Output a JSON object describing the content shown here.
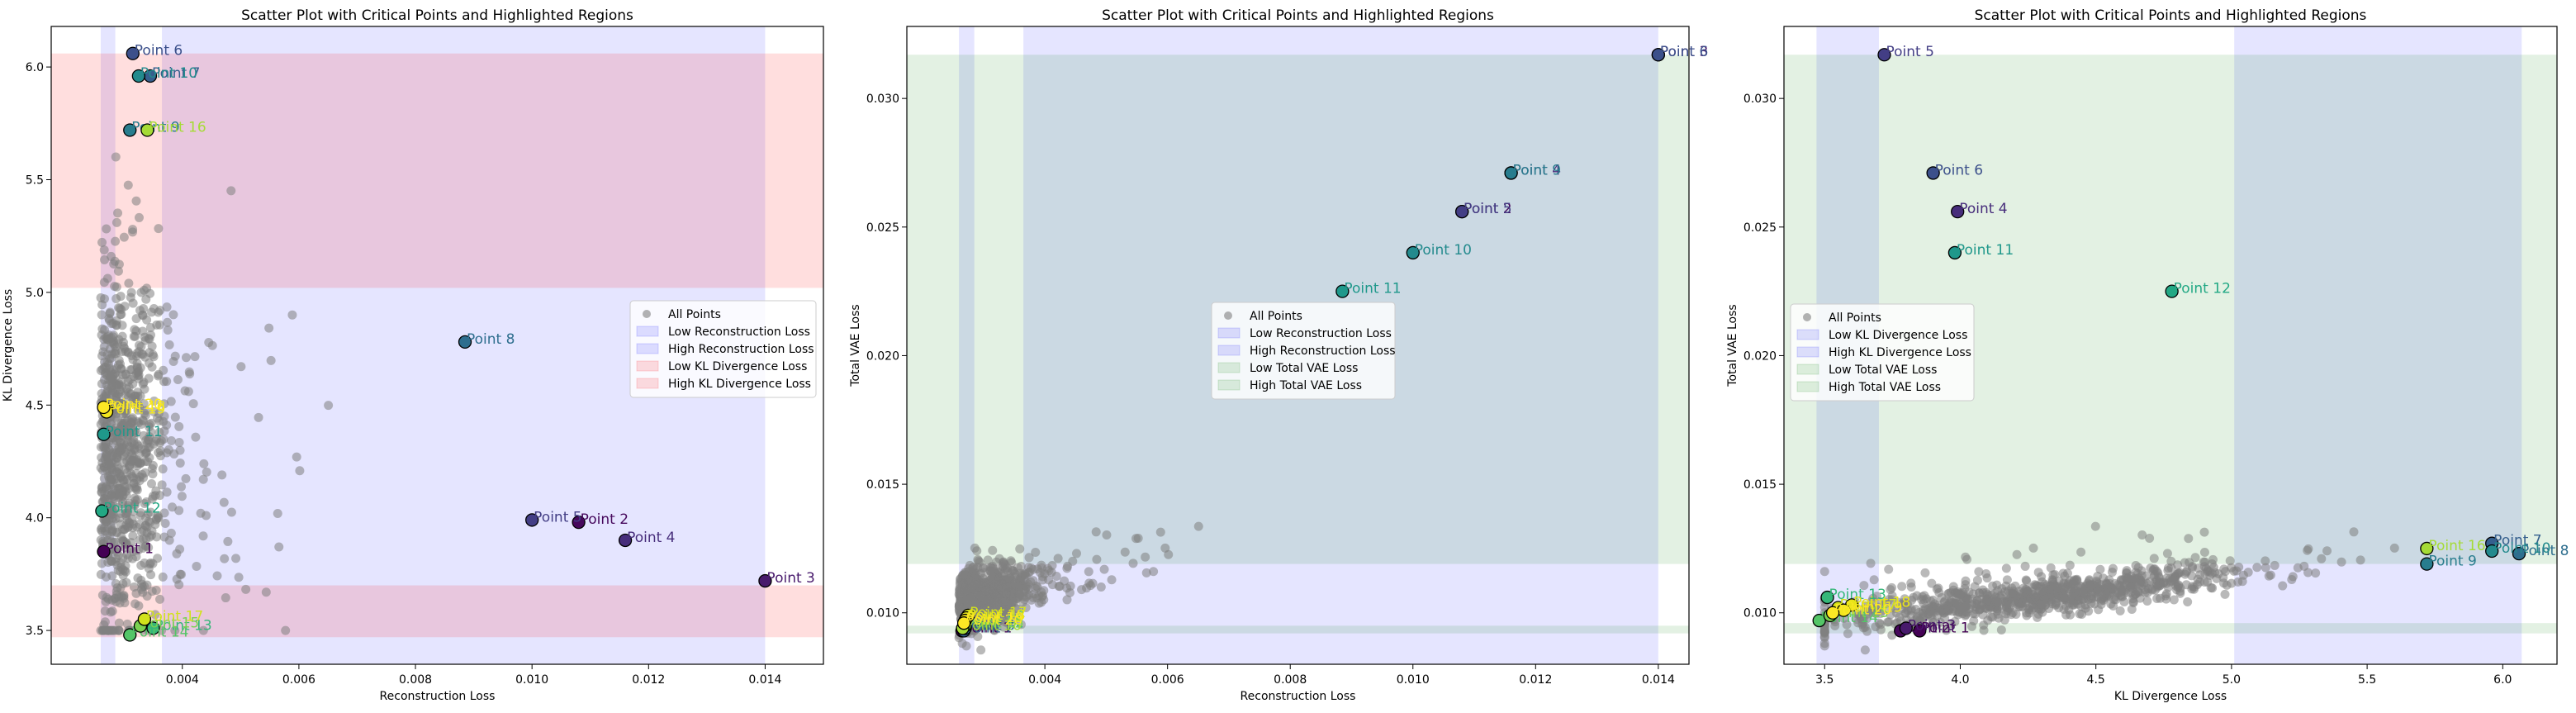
{
  "chart_data": [
    {
      "type": "scatter",
      "title": "Scatter Plot with Critical Points and Highlighted Regions",
      "xlabel": "Reconstruction Loss",
      "ylabel": "KL Divergence Loss",
      "xlim": [
        0.00175,
        0.015
      ],
      "ylim": [
        3.35,
        6.18
      ],
      "xticks": [
        0.004,
        0.006,
        0.008,
        0.01,
        0.012,
        0.014
      ],
      "xtick_labels": [
        "0.004",
        "0.006",
        "0.008",
        "0.010",
        "0.012",
        "0.014"
      ],
      "yticks": [
        3.5,
        4.0,
        4.5,
        5.0,
        5.5,
        6.0
      ],
      "ytick_labels": [
        "3.5",
        "4.0",
        "4.5",
        "5.0",
        "5.5",
        "6.0"
      ],
      "regions": [
        {
          "axis": "x",
          "range": [
            0.0026,
            0.00285
          ],
          "color": "#0000ff",
          "name": "Low Reconstruction Loss"
        },
        {
          "axis": "x",
          "range": [
            0.00365,
            0.014
          ],
          "color": "#0000ff",
          "name": "High Reconstruction Loss"
        },
        {
          "axis": "y",
          "range": [
            3.47,
            3.7
          ],
          "color": "#ff0000",
          "name": "Low KL Divergence Loss"
        },
        {
          "axis": "y",
          "range": [
            5.02,
            6.06
          ],
          "color": "#ff0000",
          "name": "High KL Divergence Loss"
        }
      ],
      "critical_points": [
        {
          "label": "Point 1",
          "x": 0.00265,
          "y": 3.85,
          "color": "#440154"
        },
        {
          "label": "Point 2",
          "x": 0.0108,
          "y": 3.98,
          "color": "#46085c"
        },
        {
          "label": "Point 3",
          "x": 0.014,
          "y": 3.72,
          "color": "#481a6c"
        },
        {
          "label": "Point 4",
          "x": 0.0116,
          "y": 3.9,
          "color": "#472d7b"
        },
        {
          "label": "Point 5",
          "x": 0.01,
          "y": 3.99,
          "color": "#433e85"
        },
        {
          "label": "Point 6",
          "x": 0.00315,
          "y": 6.06,
          "color": "#3c508b"
        },
        {
          "label": "Point 7",
          "x": 0.00345,
          "y": 5.96,
          "color": "#355f8d"
        },
        {
          "label": "Point 8",
          "x": 0.00885,
          "y": 4.78,
          "color": "#2e6e8e"
        },
        {
          "label": "Point 9",
          "x": 0.0031,
          "y": 5.72,
          "color": "#287d8e"
        },
        {
          "label": "Point 10",
          "x": 0.00325,
          "y": 5.96,
          "color": "#238a8d"
        },
        {
          "label": "Point 11",
          "x": 0.00265,
          "y": 4.37,
          "color": "#1f988b"
        },
        {
          "label": "Point 12",
          "x": 0.00262,
          "y": 4.03,
          "color": "#22a884"
        },
        {
          "label": "Point 13",
          "x": 0.0035,
          "y": 3.51,
          "color": "#35b779"
        },
        {
          "label": "Point 14",
          "x": 0.0031,
          "y": 3.48,
          "color": "#54c568"
        },
        {
          "label": "Point 15",
          "x": 0.00328,
          "y": 3.52,
          "color": "#7ad151"
        },
        {
          "label": "Point 16",
          "x": 0.0034,
          "y": 5.72,
          "color": "#a5db36"
        },
        {
          "label": "Point 17",
          "x": 0.00335,
          "y": 3.55,
          "color": "#d2e21b"
        },
        {
          "label": "Point 18",
          "x": 0.0027,
          "y": 4.48,
          "color": "#e8e419"
        },
        {
          "label": "Point 19",
          "x": 0.0027,
          "y": 4.47,
          "color": "#f3e61f"
        },
        {
          "label": "Point 20",
          "x": 0.00265,
          "y": 4.49,
          "color": "#fde725"
        }
      ],
      "legend": {
        "placement": "right",
        "entries": [
          "All Points",
          "Low Reconstruction Loss",
          "High Reconstruction Loss",
          "Low KL Divergence Loss",
          "High KL Divergence Loss"
        ]
      }
    },
    {
      "type": "scatter",
      "title": "Scatter Plot with Critical Points and Highlighted Regions",
      "xlabel": "Reconstruction Loss",
      "ylabel": "Total VAE Loss",
      "xlim": [
        0.00175,
        0.0145
      ],
      "ylim": [
        0.008,
        0.0328
      ],
      "xticks": [
        0.004,
        0.006,
        0.008,
        0.01,
        0.012,
        0.014
      ],
      "xtick_labels": [
        "0.004",
        "0.006",
        "0.008",
        "0.010",
        "0.012",
        "0.014"
      ],
      "yticks": [
        0.01,
        0.015,
        0.02,
        0.025,
        0.03
      ],
      "ytick_labels": [
        "0.010",
        "0.015",
        "0.020",
        "0.025",
        "0.030"
      ],
      "regions": [
        {
          "axis": "x",
          "range": [
            0.0026,
            0.00285
          ],
          "color": "#0000ff",
          "name": "Low Reconstruction Loss"
        },
        {
          "axis": "x",
          "range": [
            0.00365,
            0.014
          ],
          "color": "#0000ff",
          "name": "High Reconstruction Loss"
        },
        {
          "axis": "y",
          "range": [
            0.0092,
            0.0095
          ],
          "color": "#008000",
          "name": "Low Total VAE Loss"
        },
        {
          "axis": "y",
          "range": [
            0.0119,
            0.0317
          ],
          "color": "#008000",
          "name": "High Total VAE Loss"
        }
      ],
      "critical_points": [
        {
          "label": "Point 1",
          "x": 0.00265,
          "y": 0.0093,
          "color": "#440154"
        },
        {
          "label": "Point 2",
          "x": 0.0108,
          "y": 0.0256,
          "color": "#46085c"
        },
        {
          "label": "Point 3",
          "x": 0.014,
          "y": 0.0317,
          "color": "#481a6c"
        },
        {
          "label": "Point 4",
          "x": 0.0116,
          "y": 0.0271,
          "color": "#472d7b"
        },
        {
          "label": "Point 5",
          "x": 0.0108,
          "y": 0.0256,
          "color": "#433e85"
        },
        {
          "label": "Point 6",
          "x": 0.014,
          "y": 0.0317,
          "color": "#3c508b"
        },
        {
          "label": "Point 7",
          "x": 0.00268,
          "y": 0.0093,
          "color": "#355f8d"
        },
        {
          "label": "Point 8",
          "x": 0.0027,
          "y": 0.0094,
          "color": "#2e6e8e"
        },
        {
          "label": "Point 9",
          "x": 0.0116,
          "y": 0.0271,
          "color": "#287d8e"
        },
        {
          "label": "Point 10",
          "x": 0.01,
          "y": 0.024,
          "color": "#238a8d"
        },
        {
          "label": "Point 11",
          "x": 0.00885,
          "y": 0.0225,
          "color": "#1f988b"
        },
        {
          "label": "Point 12",
          "x": 0.0027,
          "y": 0.0095,
          "color": "#22a884"
        },
        {
          "label": "Point 13",
          "x": 0.00268,
          "y": 0.0096,
          "color": "#35b779"
        },
        {
          "label": "Point 14",
          "x": 0.00272,
          "y": 0.0098,
          "color": "#54c568"
        },
        {
          "label": "Point 15",
          "x": 0.0027,
          "y": 0.0095,
          "color": "#7ad151"
        },
        {
          "label": "Point 16",
          "x": 0.00266,
          "y": 0.0094,
          "color": "#a5db36"
        },
        {
          "label": "Point 17",
          "x": 0.00275,
          "y": 0.0099,
          "color": "#d2e21b"
        },
        {
          "label": "Point 18",
          "x": 0.00272,
          "y": 0.0098,
          "color": "#e8e419"
        },
        {
          "label": "Point 19",
          "x": 0.0027,
          "y": 0.0097,
          "color": "#f3e61f"
        },
        {
          "label": "Point 20",
          "x": 0.00268,
          "y": 0.0096,
          "color": "#fde725"
        }
      ],
      "legend": {
        "placement": "center",
        "entries": [
          "All Points",
          "Low Reconstruction Loss",
          "High Reconstruction Loss",
          "Low Total VAE Loss",
          "High Total VAE Loss"
        ]
      }
    },
    {
      "type": "scatter",
      "title": "Scatter Plot with Critical Points and Highlighted Regions",
      "xlabel": "KL Divergence Loss",
      "ylabel": "Total VAE Loss",
      "xlim": [
        3.35,
        6.2
      ],
      "ylim": [
        0.008,
        0.0328
      ],
      "xticks": [
        3.5,
        4.0,
        4.5,
        5.0,
        5.5,
        6.0
      ],
      "xtick_labels": [
        "3.5",
        "4.0",
        "4.5",
        "5.0",
        "5.5",
        "6.0"
      ],
      "yticks": [
        0.01,
        0.015,
        0.02,
        0.025,
        0.03
      ],
      "ytick_labels": [
        "0.010",
        "0.015",
        "0.020",
        "0.025",
        "0.030"
      ],
      "regions": [
        {
          "axis": "x",
          "range": [
            3.47,
            3.7
          ],
          "color": "#0000ff",
          "name": "Low KL Divergence Loss"
        },
        {
          "axis": "x",
          "range": [
            5.01,
            6.07
          ],
          "color": "#0000ff",
          "name": "High KL Divergence Loss"
        },
        {
          "axis": "y",
          "range": [
            0.0092,
            0.0096
          ],
          "color": "#008000",
          "name": "Low Total VAE Loss"
        },
        {
          "axis": "y",
          "range": [
            0.0119,
            0.0317
          ],
          "color": "#008000",
          "name": "High Total VAE Loss"
        }
      ],
      "critical_points": [
        {
          "label": "Point 1",
          "x": 3.85,
          "y": 0.0093,
          "color": "#440154"
        },
        {
          "label": "Point 2",
          "x": 3.78,
          "y": 0.0093,
          "color": "#46085c"
        },
        {
          "label": "Point 3",
          "x": 3.8,
          "y": 0.0094,
          "color": "#481a6c"
        },
        {
          "label": "Point 4",
          "x": 3.99,
          "y": 0.0256,
          "color": "#472d7b"
        },
        {
          "label": "Point 5",
          "x": 3.72,
          "y": 0.0317,
          "color": "#433e85"
        },
        {
          "label": "Point 6",
          "x": 3.9,
          "y": 0.0271,
          "color": "#3c508b"
        },
        {
          "label": "Point 7",
          "x": 5.96,
          "y": 0.0127,
          "color": "#355f8d"
        },
        {
          "label": "Point 8",
          "x": 6.06,
          "y": 0.0123,
          "color": "#2e6e8e"
        },
        {
          "label": "Point 9",
          "x": 5.72,
          "y": 0.0119,
          "color": "#287d8e"
        },
        {
          "label": "Point 10",
          "x": 5.96,
          "y": 0.0124,
          "color": "#238a8d"
        },
        {
          "label": "Point 11",
          "x": 3.98,
          "y": 0.024,
          "color": "#1f988b"
        },
        {
          "label": "Point 12",
          "x": 4.78,
          "y": 0.0225,
          "color": "#22a884"
        },
        {
          "label": "Point 13",
          "x": 3.51,
          "y": 0.0106,
          "color": "#35b779"
        },
        {
          "label": "Point 14",
          "x": 3.48,
          "y": 0.0097,
          "color": "#54c568"
        },
        {
          "label": "Point 15",
          "x": 3.52,
          "y": 0.0099,
          "color": "#7ad151"
        },
        {
          "label": "Point 16",
          "x": 5.72,
          "y": 0.0125,
          "color": "#a5db36"
        },
        {
          "label": "Point 17",
          "x": 3.55,
          "y": 0.0102,
          "color": "#d2e21b"
        },
        {
          "label": "Point 18",
          "x": 3.6,
          "y": 0.0103,
          "color": "#e8e419"
        },
        {
          "label": "Point 19",
          "x": 3.57,
          "y": 0.0101,
          "color": "#f3e61f"
        },
        {
          "label": "Point 20",
          "x": 3.53,
          "y": 0.01,
          "color": "#fde725"
        }
      ],
      "legend": {
        "placement": "left",
        "entries": [
          "All Points",
          "Low KL Divergence Loss",
          "High KL Divergence Loss",
          "Low Total VAE Loss",
          "High Total VAE Loss"
        ]
      }
    }
  ]
}
